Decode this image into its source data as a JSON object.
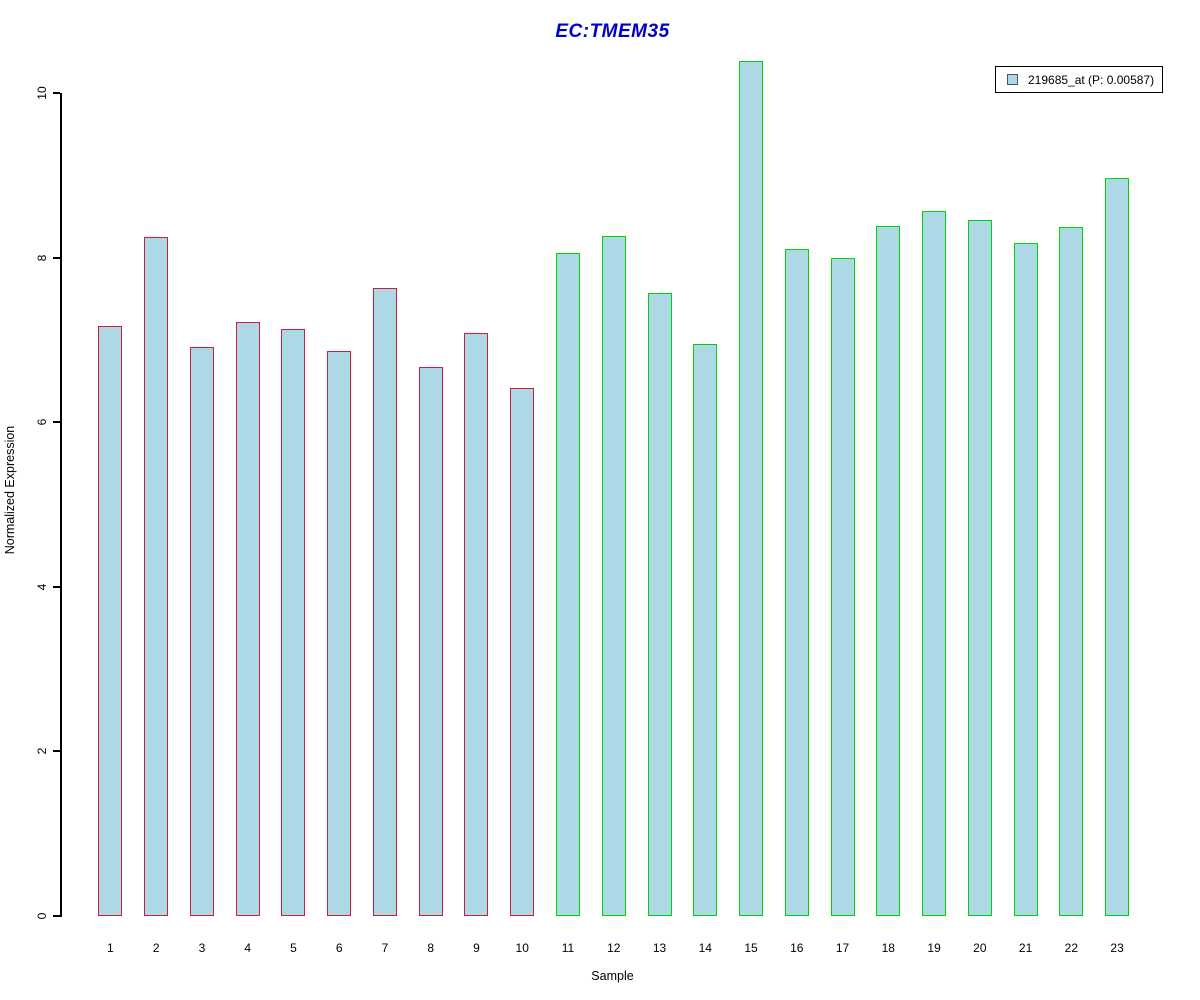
{
  "title": "EC:TMEM35",
  "title_color": "#0000cd",
  "legend": {
    "label": "219685_at (P: 0.00587)",
    "position": "top-right",
    "swatch_fill": "#add8e6",
    "swatch_border": "#445566"
  },
  "chart_data": {
    "type": "bar",
    "title": "EC:TMEM35",
    "xlabel": "Sample",
    "ylabel": "Normalized Expression",
    "ylim": [
      0,
      10.4
    ],
    "yticks": [
      0,
      2,
      4,
      6,
      8,
      10
    ],
    "grid": false,
    "legend_entries": [
      "219685_at (P: 0.00587)"
    ],
    "categories": [
      "1",
      "2",
      "3",
      "4",
      "5",
      "6",
      "7",
      "8",
      "9",
      "10",
      "11",
      "12",
      "13",
      "14",
      "15",
      "16",
      "17",
      "18",
      "19",
      "20",
      "21",
      "22",
      "23"
    ],
    "values": [
      7.17,
      8.25,
      6.91,
      7.22,
      7.13,
      6.87,
      7.63,
      6.67,
      7.08,
      6.42,
      8.05,
      8.26,
      7.57,
      6.95,
      10.39,
      8.1,
      7.99,
      8.38,
      8.57,
      8.46,
      8.18,
      8.37,
      8.97
    ],
    "bar_fill": "#add8e6",
    "groups": [
      "A",
      "A",
      "A",
      "A",
      "A",
      "A",
      "A",
      "A",
      "A",
      "A",
      "B",
      "B",
      "B",
      "B",
      "B",
      "B",
      "B",
      "B",
      "B",
      "B",
      "B",
      "B",
      "B"
    ],
    "group_border_colors": {
      "A": "#cf1d3c",
      "B": "#00d400"
    }
  }
}
